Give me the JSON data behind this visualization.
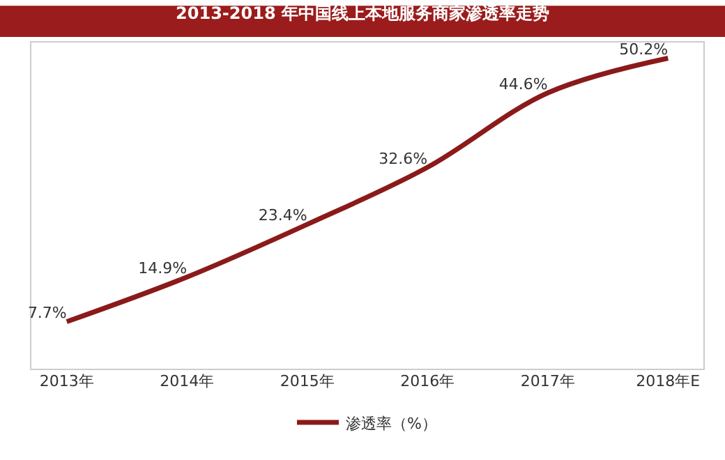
{
  "chart_data": {
    "type": "line",
    "title": "2013-2018 年中国线上本地服务商家渗透率走势",
    "categories": [
      "2013年",
      "2014年",
      "2015年",
      "2016年",
      "2017年",
      "2018年E"
    ],
    "series": [
      {
        "name": "渗透率（%）",
        "color": "#8b1a1a",
        "values": [
          7.7,
          14.9,
          23.4,
          32.6,
          44.6,
          50.2
        ],
        "value_labels": [
          "7.7%",
          "14.9%",
          "23.4%",
          "32.6%",
          "44.6%",
          "50.2%"
        ]
      }
    ],
    "legend": "bottom",
    "marker": "none",
    "line_style": "solid"
  }
}
